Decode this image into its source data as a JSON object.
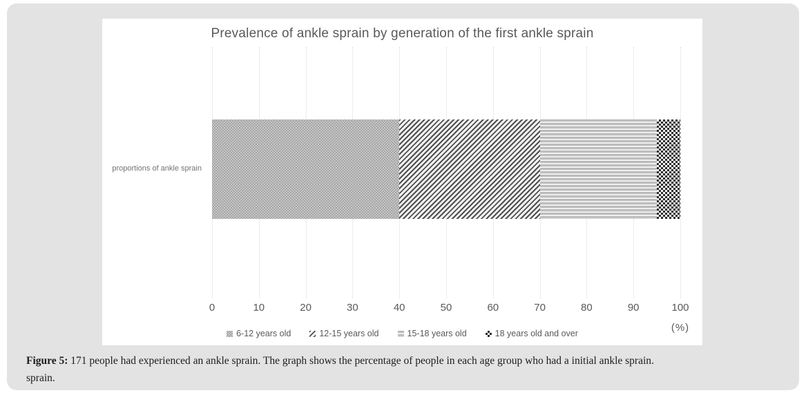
{
  "panel": {
    "background": "#e3e3e3"
  },
  "chart": {
    "title": "Prevalence of ankle sprain by generation of the first ankle sprain",
    "category_label": "proportions of ankle sprain",
    "axis_unit": "(%)",
    "text_color": "#595959",
    "gridline_color": "#d9d9d9"
  },
  "chart_data": {
    "type": "bar",
    "orientation": "horizontal",
    "stacked": true,
    "title": "Prevalence of ankle sprain by generation of the first ankle sprain",
    "categories": [
      "proportions of ankle sprain"
    ],
    "series": [
      {
        "name": "6-12 years old",
        "values": [
          40
        ],
        "pattern": "dots"
      },
      {
        "name": "12-15 years old",
        "values": [
          30
        ],
        "pattern": "diag"
      },
      {
        "name": "15-18 years old",
        "values": [
          25
        ],
        "pattern": "hlines"
      },
      {
        "name": "18 years old and over",
        "values": [
          5
        ],
        "pattern": "checker"
      }
    ],
    "xlabel": "(%)",
    "xlim": [
      0,
      100
    ],
    "x_ticks": [
      0,
      10,
      20,
      30,
      40,
      50,
      60,
      70,
      80,
      90,
      100
    ],
    "grid": true,
    "legend_position": "bottom"
  },
  "caption": {
    "label": "Figure 5:",
    "text": " 171 people had experienced an ankle sprain. The graph shows the percentage of people in each age group who had a initial ankle sprain.",
    "overflow_line": "sprain."
  }
}
